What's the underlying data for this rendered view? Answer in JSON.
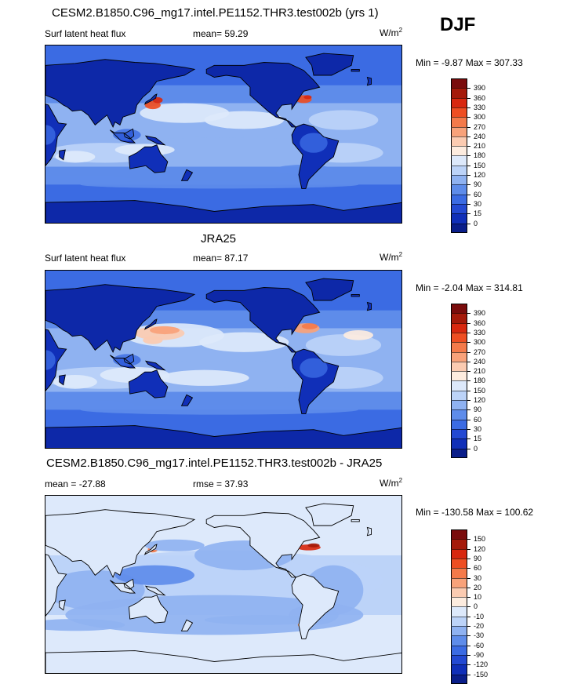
{
  "season": "DJF",
  "panels": [
    {
      "title": "CESM2.B1850.C96_mg17.intel.PE1152.THR3.test002b (yrs 1)",
      "left_label": "Surf latent heat flux",
      "mean_label": "mean=  59.29",
      "units": "W/m",
      "units_sup": "2",
      "range_label": "Min =  -9.87 Max = 307.33",
      "kind": "model",
      "colorbar": [
        "390",
        "360",
        "330",
        "300",
        "270",
        "240",
        "210",
        "180",
        "150",
        "120",
        "90",
        "60",
        "30",
        "15",
        "0"
      ]
    },
    {
      "title": "JRA25",
      "left_label": "Surf latent heat flux",
      "mean_label": "mean=  87.17",
      "units": "W/m",
      "units_sup": "2",
      "range_label": "Min =  -2.04 Max = 314.81",
      "kind": "obs",
      "colorbar": [
        "390",
        "360",
        "330",
        "300",
        "270",
        "240",
        "210",
        "180",
        "150",
        "120",
        "90",
        "60",
        "30",
        "15",
        "0"
      ]
    },
    {
      "title": "CESM2.B1850.C96_mg17.intel.PE1152.THR3.test002b - JRA25",
      "left_label": "mean = -27.88",
      "mean_label": "rmse =  37.93",
      "units": "W/m",
      "units_sup": "2",
      "range_label": "Min = -130.58 Max = 100.62",
      "kind": "diff",
      "colorbar": [
        "150",
        "120",
        "90",
        "60",
        "30",
        "20",
        "10",
        "0",
        "-10",
        "-20",
        "-30",
        "-60",
        "-90",
        "-120",
        "-150"
      ]
    }
  ],
  "colors": {
    "seq": [
      "#7a0c0c",
      "#a51a0a",
      "#d8280f",
      "#ee4e22",
      "#f47a4a",
      "#f8a27a",
      "#fbcbb1",
      "#fdecdf",
      "#dde9fb",
      "#bcd3f8",
      "#8fb2f1",
      "#5e8cea",
      "#3b6be3",
      "#2349d2",
      "#102fb8",
      "#0a1e8a"
    ],
    "diff": [
      "#7a0c0c",
      "#a51a0a",
      "#d8280f",
      "#ee4e22",
      "#f47a4a",
      "#f8a27a",
      "#fbcbb1",
      "#fdecdf",
      "#dde9fb",
      "#bcd3f8",
      "#8fb2f1",
      "#5e8cea",
      "#3b6be3",
      "#2349d2",
      "#102fb8",
      "#0a1e8a"
    ]
  }
}
